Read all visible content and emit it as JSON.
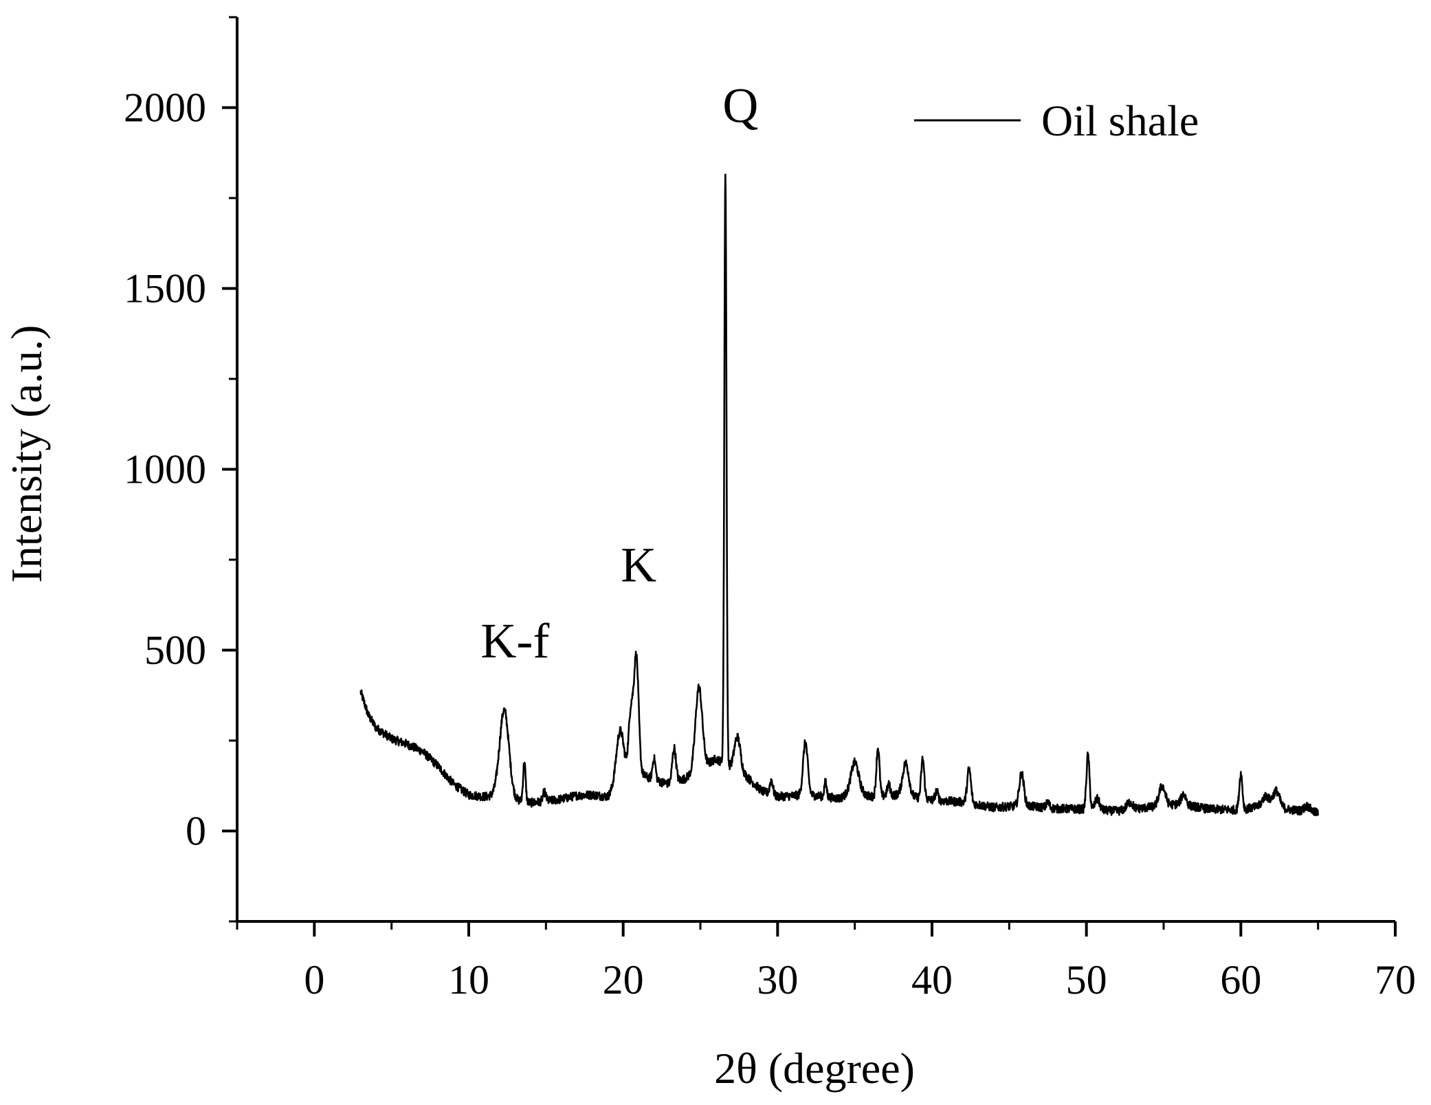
{
  "chart_data": {
    "type": "line",
    "title": "",
    "xlabel": "2θ (degree)",
    "ylabel": "Intensity (a.u.)",
    "xlim": [
      -5,
      70
    ],
    "ylim": [
      -250,
      2250
    ],
    "xticks": [
      0,
      10,
      20,
      30,
      40,
      50,
      60,
      70
    ],
    "yticks": [
      0,
      500,
      1000,
      1500,
      2000
    ],
    "xtick_labels": [
      "0",
      "10",
      "20",
      "30",
      "40",
      "50",
      "60",
      "70"
    ],
    "ytick_labels": [
      "0",
      "500",
      "1000",
      "1500",
      "2000"
    ],
    "grid": false,
    "legend": {
      "position": "top-right",
      "entries": [
        "Oil shale"
      ]
    },
    "series": [
      {
        "name": "Oil shale",
        "color": "#000000",
        "baseline": [
          [
            3,
            385
          ],
          [
            3.5,
            320
          ],
          [
            4,
            285
          ],
          [
            5,
            255
          ],
          [
            6,
            240
          ],
          [
            7,
            220
          ],
          [
            8,
            180
          ],
          [
            9,
            130
          ],
          [
            10,
            100
          ],
          [
            11,
            95
          ],
          [
            12,
            98
          ],
          [
            13,
            85
          ],
          [
            14,
            78
          ],
          [
            15,
            82
          ],
          [
            16,
            88
          ],
          [
            17,
            98
          ],
          [
            18,
            100
          ],
          [
            19,
            95
          ],
          [
            20,
            135
          ],
          [
            21,
            160
          ],
          [
            22,
            140
          ],
          [
            23,
            130
          ],
          [
            24,
            145
          ],
          [
            25,
            170
          ],
          [
            26,
            200
          ],
          [
            27,
            175
          ],
          [
            28,
            150
          ],
          [
            29,
            110
          ],
          [
            30,
            95
          ],
          [
            32,
            100
          ],
          [
            34,
            90
          ],
          [
            35,
            110
          ],
          [
            36,
            95
          ],
          [
            38,
            100
          ],
          [
            40,
            85
          ],
          [
            42,
            80
          ],
          [
            44,
            65
          ],
          [
            46,
            70
          ],
          [
            48,
            62
          ],
          [
            50,
            60
          ],
          [
            52,
            55
          ],
          [
            54,
            65
          ],
          [
            56,
            75
          ],
          [
            58,
            60
          ],
          [
            60,
            58
          ],
          [
            62,
            75
          ],
          [
            63,
            60
          ],
          [
            65,
            50
          ]
        ],
        "peaks": [
          {
            "x": 12.3,
            "height": 240,
            "width": 0.3
          },
          {
            "x": 13.6,
            "height": 110,
            "width": 0.08
          },
          {
            "x": 14.9,
            "height": 25,
            "width": 0.1
          },
          {
            "x": 19.8,
            "height": 150,
            "width": 0.25
          },
          {
            "x": 20.5,
            "height": 180,
            "width": 0.15
          },
          {
            "x": 20.85,
            "height": 320,
            "width": 0.15
          },
          {
            "x": 22.0,
            "height": 60,
            "width": 0.1
          },
          {
            "x": 23.3,
            "height": 95,
            "width": 0.12
          },
          {
            "x": 24.9,
            "height": 230,
            "width": 0.22
          },
          {
            "x": 26.62,
            "height": 1640,
            "width": 0.07
          },
          {
            "x": 27.4,
            "height": 95,
            "width": 0.2
          },
          {
            "x": 29.6,
            "height": 40,
            "width": 0.1
          },
          {
            "x": 31.8,
            "height": 145,
            "width": 0.15
          },
          {
            "x": 33.1,
            "height": 40,
            "width": 0.08
          },
          {
            "x": 35.0,
            "height": 80,
            "width": 0.25
          },
          {
            "x": 36.5,
            "height": 135,
            "width": 0.1
          },
          {
            "x": 37.2,
            "height": 30,
            "width": 0.1
          },
          {
            "x": 38.3,
            "height": 90,
            "width": 0.2
          },
          {
            "x": 39.4,
            "height": 110,
            "width": 0.1
          },
          {
            "x": 40.3,
            "height": 25,
            "width": 0.1
          },
          {
            "x": 42.4,
            "height": 95,
            "width": 0.12
          },
          {
            "x": 45.8,
            "height": 90,
            "width": 0.15
          },
          {
            "x": 47.5,
            "height": 15,
            "width": 0.1
          },
          {
            "x": 50.1,
            "height": 150,
            "width": 0.1
          },
          {
            "x": 50.7,
            "height": 30,
            "width": 0.15
          },
          {
            "x": 52.8,
            "height": 20,
            "width": 0.2
          },
          {
            "x": 54.9,
            "height": 55,
            "width": 0.2
          },
          {
            "x": 56.3,
            "height": 30,
            "width": 0.15
          },
          {
            "x": 60.0,
            "height": 100,
            "width": 0.1
          },
          {
            "x": 61.6,
            "height": 25,
            "width": 0.2
          },
          {
            "x": 62.3,
            "height": 40,
            "width": 0.2
          },
          {
            "x": 64.3,
            "height": 15,
            "width": 0.2
          }
        ],
        "noise_amplitude": 12,
        "x_step": 0.02
      }
    ],
    "annotations": [
      {
        "text": "K-f",
        "x": 13.0,
        "y": 480
      },
      {
        "text": "K",
        "x": 21.0,
        "y": 690
      },
      {
        "text": "Q",
        "x": 27.6,
        "y": 1960
      }
    ]
  }
}
